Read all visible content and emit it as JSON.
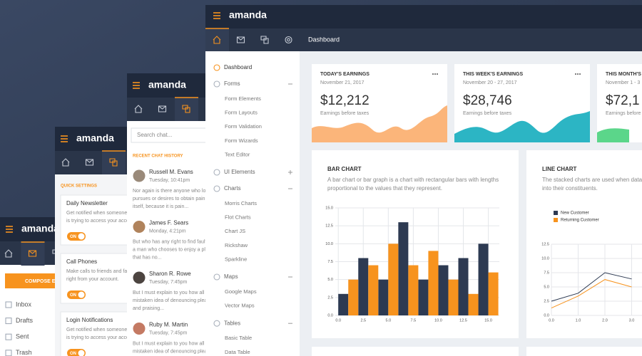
{
  "inbox_panel": {
    "brand": "amanda",
    "compose": "COMPOSE EM",
    "folders": [
      "Inbox",
      "Drafts",
      "Sent",
      "Trash"
    ]
  },
  "settings_panel": {
    "brand": "amanda",
    "heading": "QUICK SETTINGS",
    "settings": [
      {
        "title": "Daily Newsletter",
        "lines": [
          "Get notified when someone e",
          "is trying to access your accou"
        ],
        "toggle": "ON"
      },
      {
        "title": "Call Phones",
        "lines": [
          "Make calls to friends and fa",
          "right from your account."
        ],
        "toggle": "ON"
      },
      {
        "title": "Login Notifications",
        "lines": [
          "Get notified when someone e",
          "is trying to access your accou"
        ],
        "toggle": "ON"
      }
    ]
  },
  "chat_panel": {
    "brand": "amanda",
    "search": "Search chat...",
    "heading": "RECENT CHAT HISTORY",
    "chats": [
      {
        "name": "Russell M. Evans",
        "time": "Tuesday, 10:41pm",
        "lines": [
          "Nor again is there anyone who lov",
          "pursues or desires to obtain pain o",
          "itself, because it is pain..."
        ]
      },
      {
        "name": "James F. Sears",
        "time": "Monday, 4:21pm",
        "lines": [
          "But who has any right to find fault",
          "a man who chooses to enjoy a plea",
          "that has no..."
        ]
      },
      {
        "name": "Sharon R. Rowe",
        "time": "Tuesday, 7:45pm",
        "lines": [
          "But I must explain to you how all th",
          "mistaken idea of denouncing pleas",
          "and praising..."
        ]
      },
      {
        "name": "Ruby M. Martin",
        "time": "Tuesday, 7:45pm",
        "lines": [
          "But I must explain to you how all th",
          "mistaken idea of denouncing pleas"
        ]
      }
    ]
  },
  "main": {
    "brand": "amanda",
    "breadcrumb": "Dashboard",
    "menu": [
      {
        "label": "Dashboard"
      },
      {
        "label": "Forms",
        "items": [
          "Form Elements",
          "Form Layouts",
          "Form Validation",
          "Form Wizards",
          "Text Editor"
        ]
      },
      {
        "label": "UI Elements",
        "items": []
      },
      {
        "label": "Charts",
        "items": [
          "Morris Charts",
          "Flot Charts",
          "Chart JS",
          "Rickshaw",
          "Sparkline"
        ]
      },
      {
        "label": "Maps",
        "items": [
          "Google Maps",
          "Vector Maps"
        ]
      },
      {
        "label": "Tables",
        "items": [
          "Basic Table",
          "Data Table"
        ]
      }
    ],
    "cards": [
      {
        "title": "TODAY'S EARNINGS",
        "date": "November 21, 2017",
        "amount": "$12,212",
        "note": "Earnings before taxes",
        "color": "#fbb57a"
      },
      {
        "title": "THIS WEEK'S EARNINGS",
        "date": "November 20 - 27, 2017",
        "amount": "$28,746",
        "note": "Earnings before taxes",
        "color": "#2cb5c4"
      },
      {
        "title": "THIS MONTH'S E",
        "date": "November 1 - 3",
        "amount": "$72,1",
        "note": "Earnings before",
        "color": "#5bd68a"
      }
    ],
    "bar_chart": {
      "type": "bar",
      "title": "BAR CHART",
      "description": [
        "A bar chart or bar graph is a chart with rectangular bars with lengths",
        "proportional to the values that they represent."
      ],
      "series": [
        {
          "color": "#2d3a52",
          "x": [
            0,
            2,
            4,
            6,
            8,
            10,
            12,
            14
          ],
          "values": [
            3,
            8,
            5,
            13,
            5,
            7,
            8,
            10
          ]
        },
        {
          "color": "#f7931e",
          "x": [
            1,
            3,
            5,
            7,
            9,
            11,
            13,
            15
          ],
          "values": [
            5,
            7,
            10,
            7,
            9,
            5,
            3,
            6
          ]
        }
      ],
      "xlim": [
        -0.3,
        16.1
      ],
      "ylim": [
        0,
        15
      ],
      "xticks": [
        {
          "value": 0,
          "label": "0.0"
        },
        {
          "value": 2.5,
          "label": "2.5"
        },
        {
          "value": 5,
          "label": "5.0"
        },
        {
          "value": 7.5,
          "label": "7.5"
        },
        {
          "value": 10,
          "label": "10.0"
        },
        {
          "value": 12.5,
          "label": "12.5"
        },
        {
          "value": 15,
          "label": "15.0"
        }
      ],
      "yticks": [
        {
          "value": 0,
          "label": "0.0"
        },
        {
          "value": 2.5,
          "label": "2.5"
        },
        {
          "value": 5,
          "label": "5.0"
        },
        {
          "value": 7.5,
          "label": "7.5"
        },
        {
          "value": 10,
          "label": "10.0"
        },
        {
          "value": 12.5,
          "label": "12.5"
        },
        {
          "value": 15,
          "label": "15.0"
        }
      ],
      "grid": true
    },
    "line_chart": {
      "type": "line",
      "title": "LINE CHART",
      "description": [
        "The stacked charts are used when data s",
        "into their constituents."
      ],
      "series": [
        {
          "name": "New Customer",
          "color": "#2d3a52",
          "x": [
            0,
            1,
            2,
            3
          ],
          "values": [
            2.5,
            3.9,
            7.5,
            6.4
          ]
        },
        {
          "name": "Returning Customer",
          "color": "#f7931e",
          "x": [
            0,
            1,
            2,
            3
          ],
          "values": [
            1.3,
            3.4,
            6.3,
            5
          ]
        }
      ],
      "xlim": [
        0,
        3.4
      ],
      "ylim": [
        0,
        12.5
      ],
      "xticks": [
        {
          "value": 0,
          "label": "0.0"
        },
        {
          "value": 1,
          "label": "1.0"
        },
        {
          "value": 2,
          "label": "2.0"
        },
        {
          "value": 3,
          "label": "3.0"
        }
      ],
      "yticks": [
        {
          "value": 0,
          "label": "0.0"
        },
        {
          "value": 2.5,
          "label": "2.5"
        },
        {
          "value": 5,
          "label": "5.0"
        },
        {
          "value": 7.5,
          "label": "7.5"
        },
        {
          "value": 10,
          "label": "10.0"
        },
        {
          "value": 12.5,
          "label": "12.5"
        }
      ],
      "grid": true,
      "legend": "top-left"
    }
  }
}
